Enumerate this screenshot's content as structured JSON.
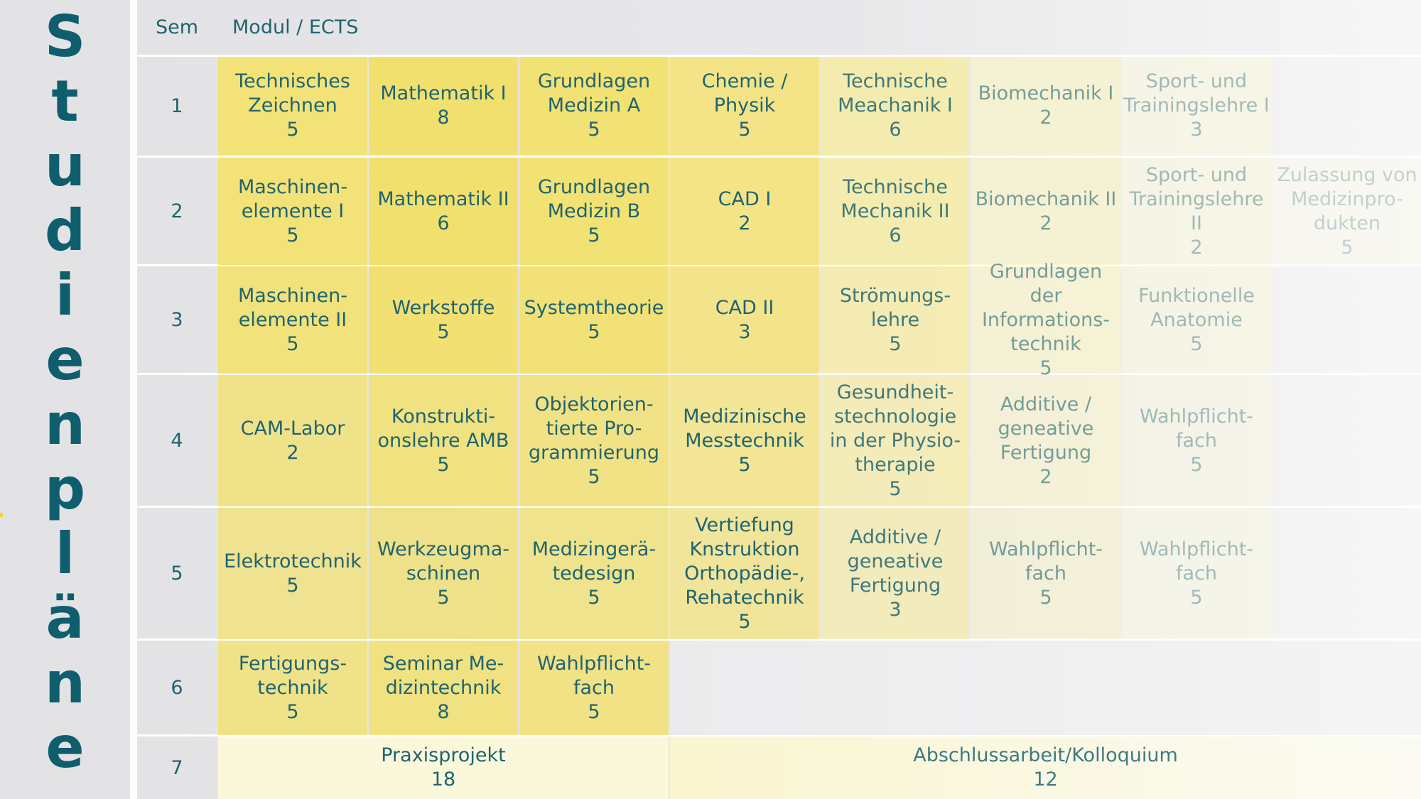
{
  "sidebar": {
    "title_chars": [
      "S",
      "t",
      "u",
      "d",
      "i",
      "e",
      "n",
      "p",
      "l",
      "ä",
      "n",
      "e"
    ],
    "title_color": "#0f5e6e",
    "accent_color": "#f2d43a"
  },
  "header": {
    "sem_label": "Sem",
    "modul_label": "Modul / ECTS"
  },
  "rows": [
    {
      "sem": "1",
      "cells": [
        {
          "name": "Technisches\nZeichnen",
          "ects": "5"
        },
        {
          "name": "Mathematik I",
          "ects": "8"
        },
        {
          "name": "Grundlagen\nMedizin A",
          "ects": "5"
        },
        {
          "name": "Chemie /\nPhysik",
          "ects": "5"
        },
        {
          "name": "Technische\nMeachanik I",
          "ects": "6"
        },
        {
          "name": "Biomechanik I",
          "ects": "2"
        },
        {
          "name": "Sport- und\nTrainingslehre I",
          "ects": "3"
        }
      ]
    },
    {
      "sem": "2",
      "cells": [
        {
          "name": "Maschinen-\nelemente I",
          "ects": "5"
        },
        {
          "name": "Mathematik II",
          "ects": "6"
        },
        {
          "name": "Grundlagen\nMedizin B",
          "ects": "5"
        },
        {
          "name": "CAD I",
          "ects": "2"
        },
        {
          "name": "Technische\nMechanik II",
          "ects": "6"
        },
        {
          "name": "Biomechanik II",
          "ects": "2"
        },
        {
          "name": "Sport- und\nTrainingslehre II",
          "ects": "2"
        },
        {
          "name": "Zulassung von\nMedizinpro-\ndukten",
          "ects": "5"
        }
      ]
    },
    {
      "sem": "3",
      "cells": [
        {
          "name": "Maschinen-\nelemente II",
          "ects": "5"
        },
        {
          "name": "Werkstoffe",
          "ects": "5"
        },
        {
          "name": "Systemtheorie",
          "ects": "5"
        },
        {
          "name": "CAD II",
          "ects": "3"
        },
        {
          "name": "Strömungs-\nlehre",
          "ects": "5"
        },
        {
          "name": "Grundlagen der\nInformations-\ntechnik",
          "ects": "5"
        },
        {
          "name": "Funktionelle\nAnatomie",
          "ects": "5"
        }
      ]
    },
    {
      "sem": "4",
      "cells": [
        {
          "name": "CAM-Labor",
          "ects": "2"
        },
        {
          "name": "Konstrukti-\nonslehre AMB",
          "ects": "5"
        },
        {
          "name": "Objektorien-\ntierte Pro-\ngrammierung",
          "ects": "5"
        },
        {
          "name": "Medizinische\nMesstechnik",
          "ects": "5"
        },
        {
          "name": "Gesundheit-\nstechnologie\nin der Physio-\ntherapie",
          "ects": "5"
        },
        {
          "name": "Additive /\ngeneative\nFertigung",
          "ects": "2"
        },
        {
          "name": "Wahlpflicht-\nfach",
          "ects": "5"
        }
      ]
    },
    {
      "sem": "5",
      "cells": [
        {
          "name": "Elektrotechnik",
          "ects": "5"
        },
        {
          "name": "Werkzeugma-\nschinen",
          "ects": "5"
        },
        {
          "name": "Medizingerä-\ntedesign",
          "ects": "5"
        },
        {
          "name": "Vertiefung\nKnstruktion\nOrthopädie-,\nRehatechnik",
          "ects": "5"
        },
        {
          "name": "Additive /\ngeneative\nFertigung",
          "ects": "3"
        },
        {
          "name": "Wahlpflicht-\nfach",
          "ects": "5"
        },
        {
          "name": "Wahlpflicht-\nfach",
          "ects": "5"
        }
      ]
    },
    {
      "sem": "6",
      "cells": [
        {
          "name": "Fertigungs-\ntechnik",
          "ects": "5"
        },
        {
          "name": "Seminar Me-\ndizintechnik",
          "ects": "8"
        },
        {
          "name": "Wahlpflicht-\nfach",
          "ects": "5"
        }
      ]
    },
    {
      "sem": "7",
      "cells": [
        {
          "name": "Praxisprojekt",
          "ects": "18"
        },
        {
          "name": "Abschlussarbeit/Kolloquium",
          "ects": "12"
        }
      ]
    }
  ]
}
